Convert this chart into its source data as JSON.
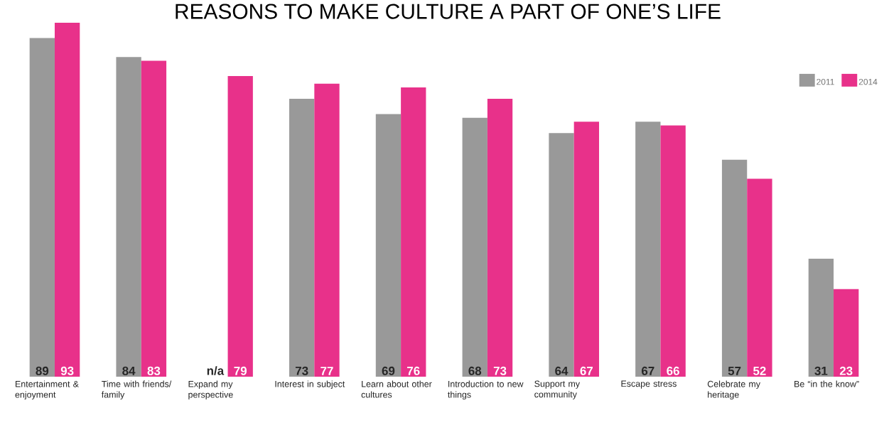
{
  "chart_data": {
    "type": "bar",
    "title": "REASONS TO MAKE CULTURE A PART OF ONE’S LIFE",
    "categories": [
      "Entertainment & enjoyment",
      "Time with friends/ family",
      "Expand my perspective",
      "Interest in subject",
      "Learn about other cultures",
      "Introduction to new things",
      "Support my community",
      "Escape stress",
      "Celebrate my heritage",
      "Be “in the know”"
    ],
    "series": [
      {
        "name": "2011",
        "color": "#999999",
        "values": [
          89,
          84,
          null,
          73,
          69,
          68,
          64,
          67,
          57,
          31
        ],
        "value_labels": [
          "89",
          "84",
          "n/a",
          "73",
          "69",
          "68",
          "64",
          "67",
          "57",
          "31"
        ]
      },
      {
        "name": "2014",
        "color": "#e8318a",
        "values": [
          93,
          83,
          79,
          77,
          76,
          73,
          67,
          66,
          52,
          23
        ],
        "value_labels": [
          "93",
          "83",
          "79",
          "77",
          "76",
          "73",
          "67",
          "66",
          "52",
          "23"
        ]
      }
    ],
    "legend": "top right"
  }
}
